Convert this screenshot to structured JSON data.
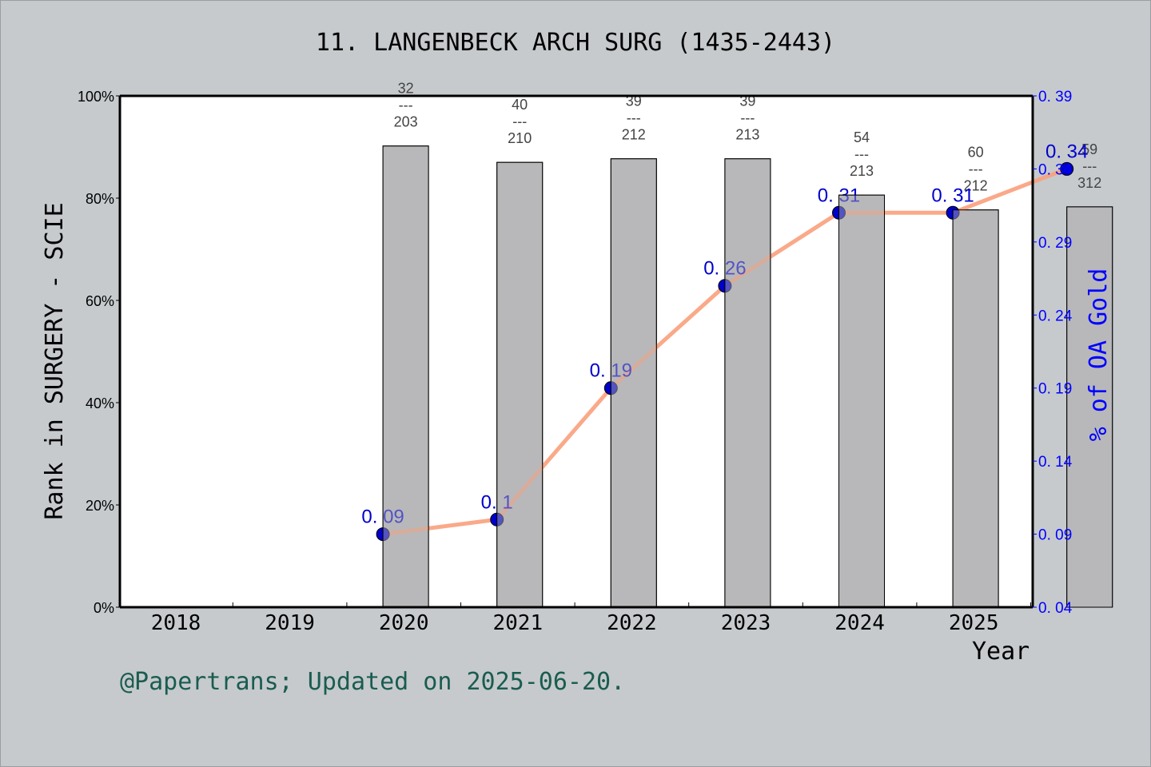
{
  "chart_data": {
    "type": "bar+line",
    "title": "11. LANGENBECK ARCH SURG (1435-2443)",
    "xlabel": "Year",
    "ylabel": "Rank in SURGERY - SCIE",
    "y2label": "% of OA Gold",
    "categories": [
      "2018",
      "2019",
      "2020",
      "2021",
      "2022",
      "2023",
      "2024",
      "2025"
    ],
    "ylim": [
      0,
      100
    ],
    "yticks": [
      "0%",
      "20%",
      "40%",
      "60%",
      "80%",
      "100%"
    ],
    "y2lim": [
      0.04,
      0.39
    ],
    "y2ticks": [
      "0. 04",
      "0. 09",
      "0. 14",
      "0. 19",
      "0. 24",
      "0. 29",
      "0. 34",
      "0. 39"
    ],
    "series": [
      {
        "name": "Rank percentile",
        "type": "bar",
        "axis": "left",
        "color": "#b8b9bb",
        "values": [
          null,
          90.2,
          87.0,
          87.7,
          87.7,
          80.6,
          77.7,
          78.3
        ],
        "labels": [
          null,
          "32\n---\n203",
          "40\n---\n210",
          "39\n---\n212",
          "39\n---\n213",
          "54\n---\n213",
          "60\n---\n212",
          "59\n---\n312"
        ],
        "label_parts": [
          null,
          [
            "32",
            "203"
          ],
          [
            "40",
            "210"
          ],
          [
            "39",
            "212"
          ],
          [
            "39",
            "213"
          ],
          [
            "54",
            "213"
          ],
          [
            "60",
            "212"
          ],
          [
            "59",
            "312"
          ]
        ]
      },
      {
        "name": "% of OA Gold",
        "type": "line",
        "axis": "right",
        "color": "#f9a07c",
        "marker_color": "#0000c8",
        "values": [
          null,
          0.09,
          0.1,
          0.19,
          0.26,
          0.31,
          0.31,
          0.34
        ],
        "labels": [
          null,
          "0. 09",
          "0. 1",
          "0. 19",
          "0. 26",
          "0. 31",
          "0. 31",
          "0. 34"
        ]
      }
    ],
    "grid": false,
    "legend": "none"
  },
  "footer": "@Papertrans; Updated on 2025-06-20.",
  "colors": {
    "background": "#c6cacd",
    "plot_bg": "#ffffff",
    "bar": "#b8b9bb",
    "line": "#f9a07c",
    "marker": "#0000c8",
    "right_axis": "#0000ff",
    "footer": "#1a5c50"
  }
}
